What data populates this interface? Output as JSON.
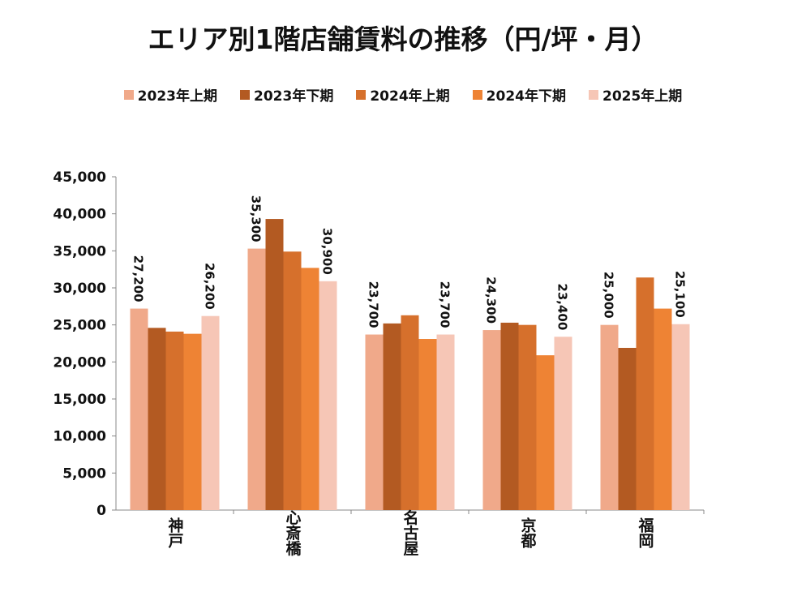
{
  "chart_data": {
    "type": "bar",
    "title": "エリア別1階店舗賃料の推移（円/坪・月）",
    "categories": [
      "神戸",
      "心斎橋",
      "名古屋",
      "京都",
      "福岡"
    ],
    "series": [
      {
        "name": "2023年上期",
        "color": "#F0A98A",
        "values": [
          27200,
          35300,
          23700,
          24300,
          25000
        ],
        "labeled": true
      },
      {
        "name": "2023年下期",
        "color": "#B35A22",
        "values": [
          24600,
          39300,
          25200,
          25300,
          21900
        ],
        "labeled": false
      },
      {
        "name": "2024年上期",
        "color": "#D6702C",
        "values": [
          24100,
          34900,
          26300,
          25000,
          31400
        ],
        "labeled": false
      },
      {
        "name": "2024年下期",
        "color": "#EE8334",
        "values": [
          23800,
          32700,
          23100,
          20900,
          27200
        ],
        "labeled": false
      },
      {
        "name": "2025年上期",
        "color": "#F6C6B6",
        "values": [
          26200,
          30900,
          23700,
          23400,
          25100
        ],
        "labeled": true
      }
    ],
    "ylim": [
      0,
      45000
    ],
    "yticks": [
      "0",
      "5,000",
      "10,000",
      "15,000",
      "20,000",
      "25,000",
      "30,000",
      "35,000",
      "40,000",
      "45,000"
    ],
    "legend": "top",
    "grid": false
  }
}
